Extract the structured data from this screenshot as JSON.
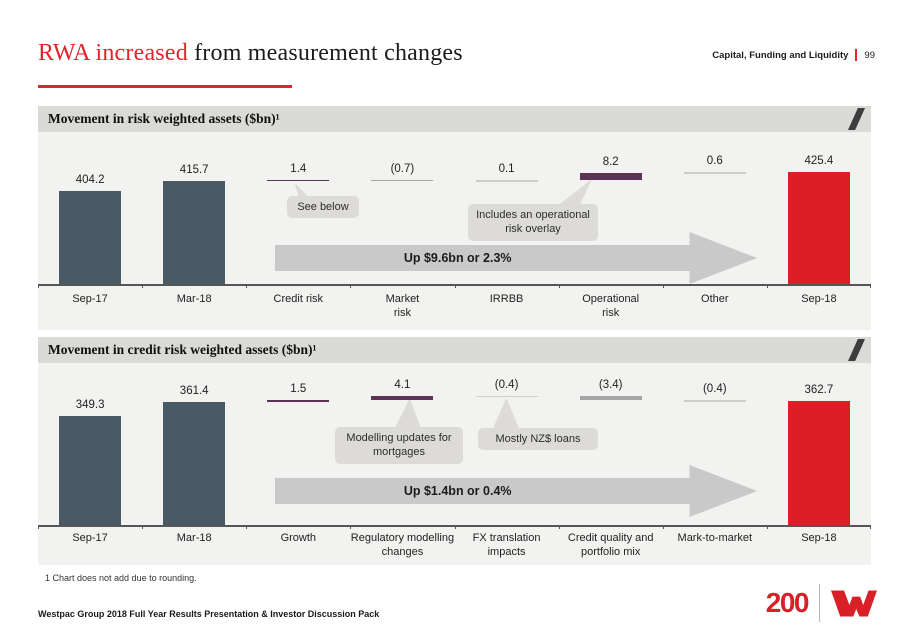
{
  "header": {
    "title_red": "RWA increased",
    "title_rest": " from measurement changes",
    "section_label": "Capital, Funding and Liquidity",
    "page_number": "99"
  },
  "chart_data": [
    {
      "type": "waterfall-bar",
      "title": "Movement in risk weighted assets ($bn)¹",
      "categories": [
        "Sep-17",
        "Mar-18",
        "Credit risk",
        "Market\nrisk",
        "IRRBB",
        "Operational\nrisk",
        "Other",
        "Sep-18"
      ],
      "points": [
        {
          "label": "Sep-17",
          "type": "bar",
          "value": 404.2,
          "display": "404.2",
          "color": "dark"
        },
        {
          "label": "Mar-18",
          "type": "bar",
          "value": 415.7,
          "display": "415.7",
          "color": "dark"
        },
        {
          "label": "Credit risk",
          "type": "delta",
          "value": 1.4,
          "display": "1.4",
          "color": "purple"
        },
        {
          "label": "Market risk",
          "type": "delta",
          "value": -0.7,
          "display": "(0.7)",
          "color": "gray"
        },
        {
          "label": "IRRBB",
          "type": "delta",
          "value": 0.1,
          "display": "0.1",
          "color": "light"
        },
        {
          "label": "Operational risk",
          "type": "delta",
          "value": 8.2,
          "display": "8.2",
          "color": "purple"
        },
        {
          "label": "Other",
          "type": "delta",
          "value": 0.6,
          "display": "0.6",
          "color": "light"
        },
        {
          "label": "Sep-18",
          "type": "bar",
          "value": 425.4,
          "display": "425.4",
          "color": "red"
        }
      ],
      "ylim": [
        300,
        466
      ],
      "grid": false,
      "arrow_label": "Up $9.6bn or 2.3%",
      "annotations": [
        "See below",
        "Includes an operational risk overlay"
      ]
    },
    {
      "type": "waterfall-bar",
      "title": "Movement in credit risk weighted assets ($bn)¹",
      "categories": [
        "Sep-17",
        "Mar-18",
        "Growth",
        "Regulatory modelling\nchanges",
        "FX translation\nimpacts",
        "Credit quality and\nportfolio mix",
        "Mark-to-market",
        "Sep-18"
      ],
      "points": [
        {
          "label": "Sep-17",
          "type": "bar",
          "value": 349.3,
          "display": "349.3",
          "color": "dark"
        },
        {
          "label": "Mar-18",
          "type": "bar",
          "value": 361.4,
          "display": "361.4",
          "color": "dark"
        },
        {
          "label": "Growth",
          "type": "delta",
          "value": 1.5,
          "display": "1.5",
          "color": "purple"
        },
        {
          "label": "Regulatory modelling changes",
          "type": "delta",
          "value": 4.1,
          "display": "4.1",
          "color": "purple"
        },
        {
          "label": "FX translation impacts",
          "type": "delta",
          "value": -0.4,
          "display": "(0.4)",
          "color": "light"
        },
        {
          "label": "Credit quality and portfolio mix",
          "type": "delta",
          "value": -3.4,
          "display": "(3.4)",
          "color": "gray"
        },
        {
          "label": "Mark-to-market",
          "type": "delta",
          "value": -0.4,
          "display": "(0.4)",
          "color": "light"
        },
        {
          "label": "Sep-18",
          "type": "bar",
          "value": 362.7,
          "display": "362.7",
          "color": "red"
        }
      ],
      "ylim": [
        254,
        392
      ],
      "grid": false,
      "arrow_label": "Up $1.4bn or 0.4%",
      "annotations": [
        "Modelling updates for\nmortgages",
        "Mostly NZ$ loans"
      ]
    }
  ],
  "colors": {
    "accent_red": "#e4232b",
    "series": {
      "dark": "#4a5a64",
      "red": "#dc1f26",
      "purple": "#5d3355",
      "gray": "#a6a6a6",
      "light": "#cdcdca"
    }
  },
  "footer": {
    "footnote": "1 Chart does not add due to rounding.",
    "brand_line": "Westpac Group 2018 Full Year Results Presentation & Investor Discussion Pack",
    "logo_200": "200"
  }
}
